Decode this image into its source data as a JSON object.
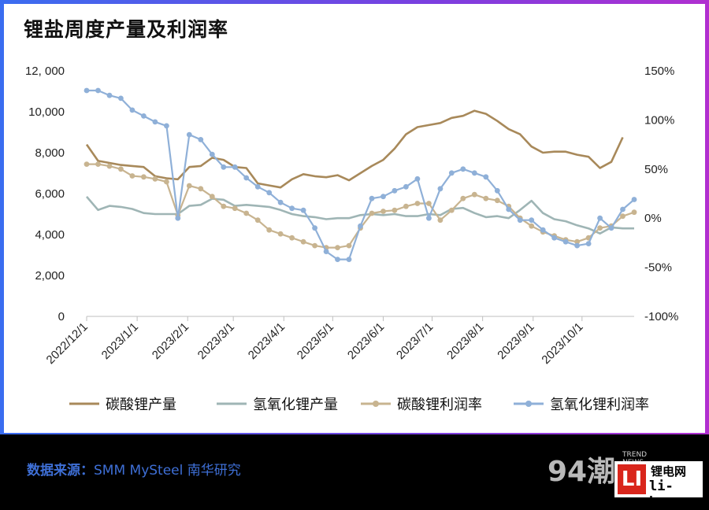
{
  "chart_data": {
    "type": "line",
    "title": "锂盐周度产量及利润率",
    "x": [
      "2022-12-01",
      "2022-12-08",
      "2022-12-15",
      "2022-12-22",
      "2022-12-29",
      "2023-01-05",
      "2023-01-12",
      "2023-01-19",
      "2023-01-26",
      "2023-02-02",
      "2023-02-09",
      "2023-02-16",
      "2023-02-23",
      "2023-03-02",
      "2023-03-09",
      "2023-03-16",
      "2023-03-23",
      "2023-03-30",
      "2023-04-06",
      "2023-04-13",
      "2023-04-20",
      "2023-04-27",
      "2023-05-04",
      "2023-05-11",
      "2023-05-18",
      "2023-05-25",
      "2023-06-01",
      "2023-06-08",
      "2023-06-15",
      "2023-06-22",
      "2023-06-29",
      "2023-07-06",
      "2023-07-13",
      "2023-07-20",
      "2023-07-27",
      "2023-08-03",
      "2023-08-10",
      "2023-08-17",
      "2023-08-24",
      "2023-08-31",
      "2023-09-07",
      "2023-09-14",
      "2023-09-21",
      "2023-09-28",
      "2023-10-05",
      "2023-10-12",
      "2023-10-19",
      "2023-10-26",
      "2023-11-02"
    ],
    "x_ticks": [
      "2022/12/1",
      "2023/1/1",
      "2023/2/1",
      "2023/3/1",
      "2023/4/1",
      "2023/5/1",
      "2023/6/1",
      "2023/7/1",
      "2023/8/1",
      "2023/9/1",
      "2023/10/1"
    ],
    "x_tick_dates": [
      "2022-12-01",
      "2023-01-01",
      "2023-02-01",
      "2023-03-01",
      "2023-04-01",
      "2023-05-01",
      "2023-06-01",
      "2023-07-01",
      "2023-08-01",
      "2023-09-01",
      "2023-10-01"
    ],
    "y_left": {
      "min": 0,
      "max": 12000,
      "ticks": [
        "0",
        "2,000",
        "4,000",
        "6,000",
        "8,000",
        "10,000",
        "12, 000"
      ],
      "tick_values": [
        0,
        2000,
        4000,
        6000,
        8000,
        10000,
        12000
      ]
    },
    "y_right": {
      "min": -100,
      "max": 150,
      "ticks": [
        "-100%",
        "-50%",
        "0%",
        "50%",
        "100%",
        "150%"
      ],
      "tick_values": [
        -100,
        -50,
        0,
        50,
        100,
        150
      ]
    },
    "grid": false,
    "legend_position": "bottom",
    "series": [
      {
        "name": "碳酸锂产量",
        "axis": "left",
        "color": "#a8895a",
        "markers": false,
        "values": [
          8400,
          7600,
          7500,
          7400,
          7350,
          7300,
          6850,
          6750,
          6700,
          7300,
          7350,
          7750,
          7650,
          7300,
          7250,
          6500,
          6400,
          6300,
          6700,
          6950,
          6850,
          6800,
          6900,
          6650,
          7000,
          7350,
          7650,
          8200,
          8900,
          9250,
          9350,
          9450,
          9700,
          9800,
          10050,
          9900,
          9550,
          9150,
          8900,
          8300,
          8000,
          8050,
          8050,
          7900,
          7800,
          7250,
          7550,
          8750,
          null
        ]
      },
      {
        "name": "氢氧化锂产量",
        "axis": "left",
        "color": "#9fb5b5",
        "markers": false,
        "values": [
          5850,
          5200,
          5400,
          5350,
          5250,
          5050,
          5000,
          5000,
          5000,
          5400,
          5450,
          5750,
          5700,
          5400,
          5450,
          5400,
          5350,
          5200,
          5000,
          4900,
          4850,
          4750,
          4800,
          4800,
          4950,
          5000,
          4950,
          5000,
          4900,
          4900,
          5000,
          4950,
          5250,
          5300,
          5050,
          4850,
          4900,
          4800,
          5200,
          5650,
          5050,
          4750,
          4650,
          4450,
          4300,
          4050,
          4350,
          4300,
          4300
        ]
      },
      {
        "name": "碳酸锂利润率",
        "axis": "right",
        "color": "#c8b490",
        "markers": true,
        "values": [
          55,
          55,
          53,
          50,
          43,
          42,
          40,
          37,
          3,
          33,
          30,
          22,
          12,
          10,
          5,
          -2,
          -12,
          -16,
          -20,
          -24,
          -28,
          -30,
          -30,
          -28,
          -10,
          5,
          7,
          8,
          12,
          15,
          15,
          -2,
          8,
          20,
          24,
          20,
          18,
          12,
          0,
          -8,
          -14,
          -18,
          -22,
          -24,
          -20,
          -10,
          -8,
          2,
          6
        ]
      },
      {
        "name": "氢氧化锂利润率",
        "axis": "right",
        "color": "#8fb0d8",
        "markers": true,
        "values": [
          130,
          130,
          125,
          122,
          110,
          104,
          98,
          94,
          0,
          85,
          80,
          65,
          52,
          52,
          41,
          32,
          26,
          16,
          10,
          8,
          -10,
          -34,
          -42,
          -42,
          -8,
          20,
          22,
          28,
          32,
          40,
          0,
          30,
          46,
          50,
          46,
          42,
          28,
          9,
          -2,
          -2,
          -12,
          -20,
          -24,
          -28,
          -26,
          0,
          -10,
          9,
          19
        ]
      }
    ]
  },
  "footer": {
    "source_label": "数据来源：",
    "source_text": "SMM MySteel 南华研究",
    "brand_logo": "LI",
    "brand_name": "锂电网",
    "brand_url": "li-b.cn",
    "watermark": "94潮",
    "watermark_sub_1": "TREND",
    "watermark_sub_2": "NEWS"
  }
}
